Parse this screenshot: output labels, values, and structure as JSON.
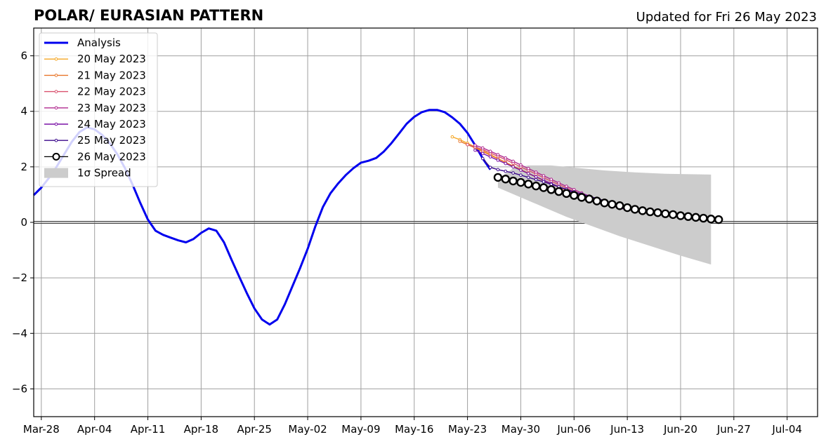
{
  "chart_data": {
    "type": "line",
    "title": "POLAR/ EURASIAN  PATTERN",
    "subtitle": "Updated for Fri 26 May 2023",
    "xlabel": "",
    "ylabel": "",
    "x_range": [
      "2023-03-27",
      "2023-07-08"
    ],
    "ylim": [
      -7,
      7
    ],
    "grid": true,
    "legend_position": "top-left",
    "x_tick_labels": [
      "Mar-28",
      "Apr-04",
      "Apr-11",
      "Apr-18",
      "Apr-25",
      "May-02",
      "May-09",
      "May-16",
      "May-23",
      "May-30",
      "Jun-06",
      "Jun-13",
      "Jun-20",
      "Jun-27",
      "Jul-04"
    ],
    "x_tick_dates": [
      "2023-03-28",
      "2023-04-04",
      "2023-04-11",
      "2023-04-18",
      "2023-04-25",
      "2023-05-02",
      "2023-05-09",
      "2023-05-16",
      "2023-05-23",
      "2023-05-30",
      "2023-06-06",
      "2023-06-13",
      "2023-06-20",
      "2023-06-27",
      "2023-07-04"
    ],
    "y_ticks": [
      -6,
      -4,
      -2,
      0,
      2,
      4,
      6
    ],
    "y_tick_labels": [
      "−6",
      "−4",
      "−2",
      "0",
      "2",
      "4",
      "6"
    ],
    "zero_line": true,
    "series": [
      {
        "name": "Analysis",
        "color": "#0000ee",
        "style": "thick-line",
        "points": [
          [
            "2023-03-27",
            0.98
          ],
          [
            "2023-03-28",
            1.25
          ],
          [
            "2023-03-29",
            1.6
          ],
          [
            "2023-03-30",
            2.0
          ],
          [
            "2023-03-31",
            2.45
          ],
          [
            "2023-04-01",
            2.9
          ],
          [
            "2023-04-02",
            3.25
          ],
          [
            "2023-04-03",
            3.42
          ],
          [
            "2023-04-04",
            3.35
          ],
          [
            "2023-04-05",
            3.15
          ],
          [
            "2023-04-06",
            2.85
          ],
          [
            "2023-04-07",
            2.45
          ],
          [
            "2023-04-08",
            1.95
          ],
          [
            "2023-04-09",
            1.35
          ],
          [
            "2023-04-10",
            0.7
          ],
          [
            "2023-04-11",
            0.1
          ],
          [
            "2023-04-12",
            -0.3
          ],
          [
            "2023-04-13",
            -0.45
          ],
          [
            "2023-04-14",
            -0.55
          ],
          [
            "2023-04-15",
            -0.65
          ],
          [
            "2023-04-16",
            -0.72
          ],
          [
            "2023-04-17",
            -0.6
          ],
          [
            "2023-04-18",
            -0.38
          ],
          [
            "2023-04-19",
            -0.22
          ],
          [
            "2023-04-20",
            -0.3
          ],
          [
            "2023-04-21",
            -0.72
          ],
          [
            "2023-04-22",
            -1.35
          ],
          [
            "2023-04-23",
            -1.95
          ],
          [
            "2023-04-24",
            -2.55
          ],
          [
            "2023-04-25",
            -3.1
          ],
          [
            "2023-04-26",
            -3.5
          ],
          [
            "2023-04-27",
            -3.68
          ],
          [
            "2023-04-28",
            -3.5
          ],
          [
            "2023-04-29",
            -2.95
          ],
          [
            "2023-04-30",
            -2.3
          ],
          [
            "2023-05-01",
            -1.65
          ],
          [
            "2023-05-02",
            -0.95
          ],
          [
            "2023-05-03",
            -0.15
          ],
          [
            "2023-05-04",
            0.55
          ],
          [
            "2023-05-05",
            1.05
          ],
          [
            "2023-05-06",
            1.4
          ],
          [
            "2023-05-07",
            1.7
          ],
          [
            "2023-05-08",
            1.95
          ],
          [
            "2023-05-09",
            2.15
          ],
          [
            "2023-05-10",
            2.22
          ],
          [
            "2023-05-11",
            2.32
          ],
          [
            "2023-05-12",
            2.55
          ],
          [
            "2023-05-13",
            2.85
          ],
          [
            "2023-05-14",
            3.2
          ],
          [
            "2023-05-15",
            3.55
          ],
          [
            "2023-05-16",
            3.8
          ],
          [
            "2023-05-17",
            3.97
          ],
          [
            "2023-05-18",
            4.05
          ],
          [
            "2023-05-19",
            4.05
          ],
          [
            "2023-05-20",
            3.97
          ],
          [
            "2023-05-21",
            3.78
          ],
          [
            "2023-05-22",
            3.55
          ],
          [
            "2023-05-23",
            3.22
          ],
          [
            "2023-05-24",
            2.78
          ],
          [
            "2023-05-25",
            2.3
          ],
          [
            "2023-05-26",
            1.9
          ]
        ]
      },
      {
        "name": "20 May 2023",
        "color": "#f5a623",
        "start": "2023-05-21",
        "values": [
          3.08,
          2.98,
          2.85,
          2.72,
          2.58,
          2.44,
          2.3,
          2.16,
          2.02,
          1.89,
          1.76,
          1.63,
          1.5,
          1.38,
          1.26,
          1.15,
          1.04,
          0.94,
          0.85,
          0.77,
          0.69,
          0.62,
          0.56,
          0.5,
          0.45
        ]
      },
      {
        "name": "21 May 2023",
        "color": "#e8762b",
        "start": "2023-05-22",
        "values": [
          2.92,
          2.8,
          2.68,
          2.55,
          2.42,
          2.29,
          2.16,
          2.03,
          1.9,
          1.77,
          1.64,
          1.52,
          1.4,
          1.29,
          1.18,
          1.08,
          0.98,
          0.89,
          0.8,
          0.72,
          0.65,
          0.58,
          0.52
        ]
      },
      {
        "name": "22 May 2023",
        "color": "#d9516e",
        "start": "2023-05-23",
        "values": [
          2.8,
          2.72,
          2.62,
          2.5,
          2.38,
          2.26,
          2.13,
          2.0,
          1.87,
          1.74,
          1.61,
          1.48,
          1.36,
          1.24,
          1.12,
          1.01,
          0.9,
          0.8,
          0.7,
          0.61,
          0.53,
          0.46
        ]
      },
      {
        "name": "23 May 2023",
        "color": "#b0298f",
        "start": "2023-05-24",
        "values": [
          2.78,
          2.68,
          2.56,
          2.44,
          2.32,
          2.2,
          2.07,
          1.94,
          1.81,
          1.68,
          1.55,
          1.42,
          1.3,
          1.18,
          1.06,
          0.95,
          0.85,
          0.75,
          0.66,
          0.58,
          0.5
        ]
      },
      {
        "name": "24 May 2023",
        "color": "#7a12a6",
        "start": "2023-05-24",
        "values": [
          2.6,
          2.48,
          2.36,
          2.24,
          2.12,
          2.0,
          1.88,
          1.76,
          1.64,
          1.52,
          1.4,
          1.28,
          1.17,
          1.06,
          0.96,
          0.86,
          0.77,
          0.68,
          0.6,
          0.52,
          0.45
        ]
      },
      {
        "name": "25 May 2023",
        "color": "#3b0a8c",
        "start": "2023-05-25",
        "values": [
          2.3,
          1.98,
          1.9,
          1.84,
          1.78,
          1.7,
          1.62,
          1.54,
          1.46,
          1.37,
          1.28,
          1.19,
          1.1,
          1.02,
          0.94,
          0.86,
          0.78,
          0.7,
          0.63,
          0.56
        ]
      },
      {
        "name": "26 May 2023",
        "color": "#000000",
        "style": "open-circle",
        "start": "2023-05-27",
        "values": [
          1.62,
          1.56,
          1.49,
          1.44,
          1.38,
          1.31,
          1.25,
          1.18,
          1.11,
          1.04,
          0.97,
          0.9,
          0.84,
          0.77,
          0.7,
          0.65,
          0.6,
          0.53,
          0.47,
          0.42,
          0.38,
          0.35,
          0.31,
          0.28,
          0.24,
          0.21,
          0.18,
          0.15,
          0.12,
          0.1
        ]
      }
    ],
    "spread": {
      "name": "1σ Spread",
      "color": "#cccccc",
      "start": "2023-05-27",
      "end": "2023-06-24",
      "upper": [
        [
          0,
          1.55
        ],
        [
          2,
          1.95
        ],
        [
          4,
          2.05
        ],
        [
          7,
          2.05
        ],
        [
          10,
          1.97
        ],
        [
          14,
          1.87
        ],
        [
          18,
          1.8
        ],
        [
          22,
          1.75
        ],
        [
          28,
          1.72
        ]
      ],
      "lower": [
        [
          0,
          1.25
        ],
        [
          3,
          0.9
        ],
        [
          6,
          0.55
        ],
        [
          9,
          0.2
        ],
        [
          12,
          -0.1
        ],
        [
          16,
          -0.5
        ],
        [
          20,
          -0.85
        ],
        [
          24,
          -1.2
        ],
        [
          28,
          -1.52
        ]
      ]
    },
    "legend": [
      {
        "label": "Analysis",
        "color": "#0000ee",
        "marker": "line"
      },
      {
        "label": "20 May 2023",
        "color": "#f5a623",
        "marker": "dot"
      },
      {
        "label": "21 May 2023",
        "color": "#e8762b",
        "marker": "dot"
      },
      {
        "label": "22 May 2023",
        "color": "#d9516e",
        "marker": "dot"
      },
      {
        "label": "23 May 2023",
        "color": "#b0298f",
        "marker": "dot"
      },
      {
        "label": "24 May 2023",
        "color": "#7a12a6",
        "marker": "dot"
      },
      {
        "label": "25 May 2023",
        "color": "#3b0a8c",
        "marker": "dot"
      },
      {
        "label": "26 May 2023",
        "color": "#000000",
        "marker": "circle"
      },
      {
        "label": "1σ Spread",
        "color": "#cccccc",
        "marker": "patch"
      }
    ]
  }
}
